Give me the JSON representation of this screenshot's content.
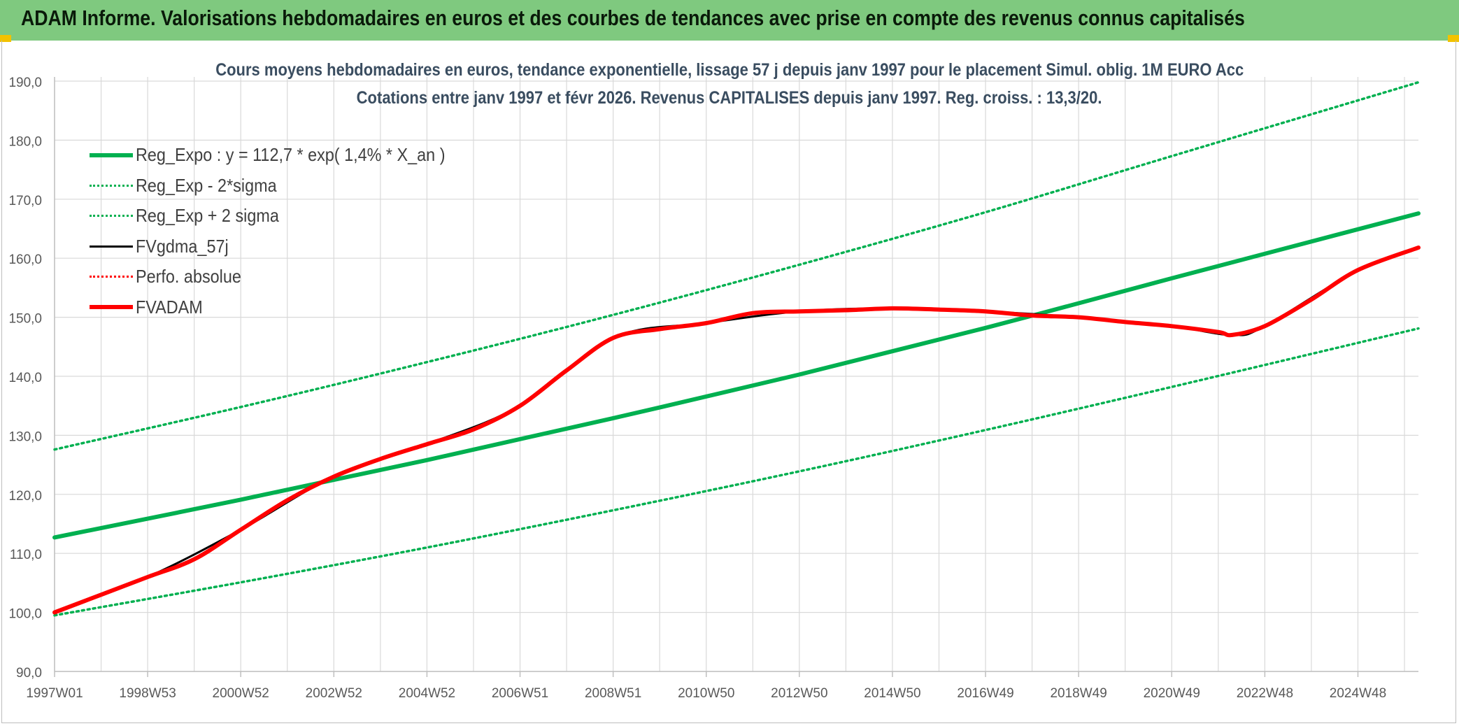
{
  "banner": {
    "title": "ADAM Informe. Valorisations hebdomadaires en euros et des courbes de tendances avec prise en compte des revenus connus capitalisés"
  },
  "colors": {
    "banner": "#7fc97f",
    "green": "#00b050",
    "red": "#ff0000",
    "black": "#000000",
    "grid": "#d9d9d9",
    "axis_text": "#595959"
  },
  "chart_data": {
    "type": "line",
    "title_lines": [
      "Cours moyens hebdomadaires en euros, tendance exponentielle, lissage 57 j depuis janv 1997 pour le placement Simul. oblig. 1M EURO Acc",
      "Cotations entre janv 1997 et févr 2026. Revenus CAPITALISES depuis janv 1997. Reg. croiss. : 13,3/20."
    ],
    "xlim": [
      1997.0,
      2026.3
    ],
    "ylim": [
      90,
      190
    ],
    "y_ticks": [
      "90,0",
      "100,0",
      "110,0",
      "120,0",
      "130,0",
      "140,0",
      "150,0",
      "160,0",
      "170,0",
      "180,0",
      "190,0"
    ],
    "x_ticks": [
      {
        "x": 1997.0,
        "label": "1997W01"
      },
      {
        "x": 1999.0,
        "label": "1998W53"
      },
      {
        "x": 2001.0,
        "label": "2000W52"
      },
      {
        "x": 2003.0,
        "label": "2002W52"
      },
      {
        "x": 2005.0,
        "label": "2004W52"
      },
      {
        "x": 2007.0,
        "label": "2006W51"
      },
      {
        "x": 2009.0,
        "label": "2008W51"
      },
      {
        "x": 2011.0,
        "label": "2010W50"
      },
      {
        "x": 2013.0,
        "label": "2012W50"
      },
      {
        "x": 2015.0,
        "label": "2014W50"
      },
      {
        "x": 2017.0,
        "label": "2016W49"
      },
      {
        "x": 2019.0,
        "label": "2018W49"
      },
      {
        "x": 2021.0,
        "label": "2020W49"
      },
      {
        "x": 2023.0,
        "label": "2022W48"
      },
      {
        "x": 2025.0,
        "label": "2024W48"
      }
    ],
    "grid": true,
    "legend_position": "top-left",
    "series": [
      {
        "name": "Reg_Expo : y = 112,7 * exp( 1,4% *  X_an )",
        "style": "solid-thick",
        "color": "#00b050",
        "x": [
          1997.0,
          2001.0,
          2005.0,
          2009.0,
          2013.0,
          2017.0,
          2021.0,
          2026.3
        ],
        "y": [
          112.7,
          119.1,
          125.8,
          132.9,
          140.3,
          148.2,
          156.6,
          167.6
        ]
      },
      {
        "name": "Reg_Exp - 2*sigma",
        "style": "dotted",
        "color": "#00b050",
        "x": [
          1997.0,
          2001.0,
          2005.0,
          2009.0,
          2013.0,
          2017.0,
          2021.0,
          2026.3
        ],
        "y": [
          99.5,
          105.1,
          111.0,
          117.3,
          123.9,
          130.9,
          138.2,
          148.1
        ]
      },
      {
        "name": "Reg_Exp + 2 sigma",
        "style": "dotted",
        "color": "#00b050",
        "x": [
          1997.0,
          2001.0,
          2005.0,
          2009.0,
          2013.0,
          2017.0,
          2021.0,
          2026.3
        ],
        "y": [
          127.6,
          134.8,
          142.4,
          150.4,
          158.9,
          167.8,
          177.3,
          189.8
        ]
      },
      {
        "name": "FVgdma_57j",
        "style": "solid",
        "color": "#000000",
        "x": [
          1997.0,
          1999.0,
          2001.0,
          2003.0,
          2005.0,
          2007.0,
          2009.0,
          2011.0,
          2013.0,
          2015.0,
          2017.0,
          2019.0,
          2021.0,
          2022.3,
          2023.0,
          2025.0,
          2026.3
        ],
        "y": [
          100.0,
          106.0,
          114.0,
          123.0,
          128.5,
          135.0,
          146.5,
          149.0,
          151.0,
          151.5,
          151.0,
          150.0,
          148.5,
          147.0,
          148.5,
          158.0,
          161.8
        ]
      },
      {
        "name": "Perfo. absolue",
        "style": "dotted",
        "color": "#ff0000",
        "x": [],
        "y": []
      },
      {
        "name": "FVADAM",
        "style": "solid-thick",
        "color": "#ff0000",
        "x": [
          1997.0,
          1998.0,
          1999.0,
          2000.0,
          2001.0,
          2002.0,
          2003.0,
          2004.0,
          2005.0,
          2006.0,
          2007.0,
          2008.0,
          2009.0,
          2010.0,
          2011.0,
          2012.0,
          2013.0,
          2014.0,
          2015.0,
          2016.0,
          2017.0,
          2018.0,
          2019.0,
          2020.0,
          2021.0,
          2022.0,
          2022.3,
          2023.0,
          2024.0,
          2025.0,
          2026.3
        ],
        "y": [
          100.0,
          103.0,
          106.0,
          109.0,
          114.0,
          119.0,
          123.0,
          126.0,
          128.5,
          131.0,
          135.0,
          141.0,
          146.5,
          148.0,
          149.0,
          150.7,
          151.0,
          151.2,
          151.5,
          151.3,
          151.0,
          150.3,
          150.0,
          149.2,
          148.5,
          147.5,
          147.0,
          148.5,
          153.0,
          158.0,
          161.8
        ]
      }
    ]
  }
}
